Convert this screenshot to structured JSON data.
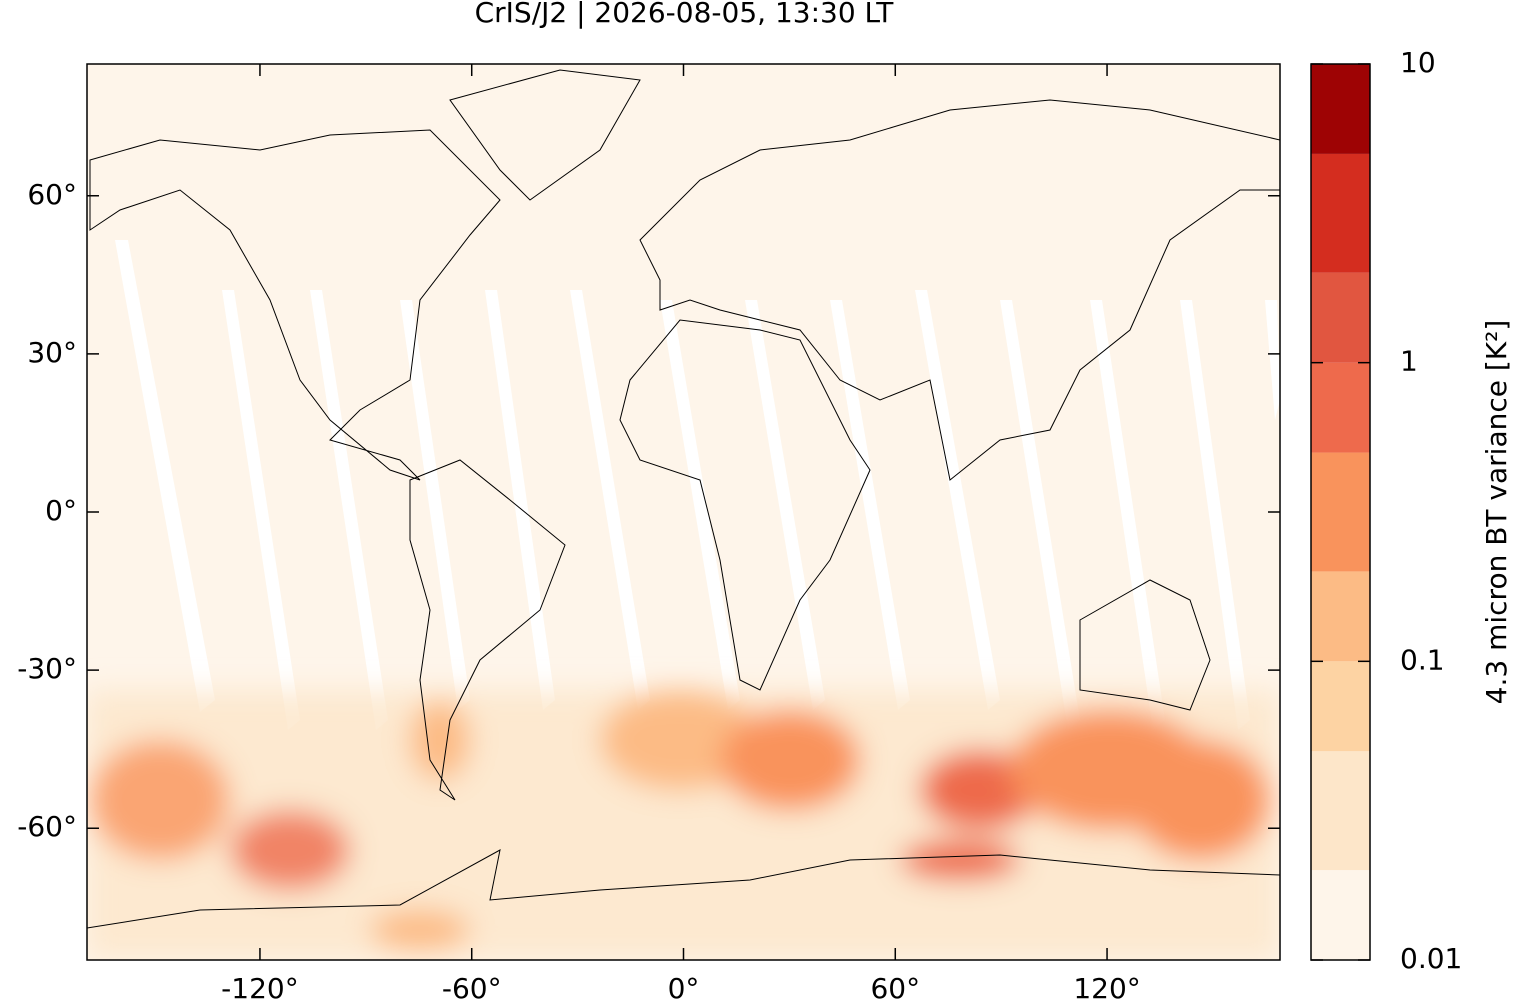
{
  "chart_data": {
    "type": "map",
    "title": "CrIS/J2 | 2026-08-05, 13:30 LT",
    "xlim": [
      -169,
      169
    ],
    "ylim": [
      -85,
      85
    ],
    "xticks": [
      {
        "value": -120,
        "label": "-120°"
      },
      {
        "value": -60,
        "label": "-60°"
      },
      {
        "value": 0,
        "label": "0°"
      },
      {
        "value": 60,
        "label": "60°"
      },
      {
        "value": 120,
        "label": "120°"
      }
    ],
    "yticks": [
      {
        "value": -60,
        "label": "-60°"
      },
      {
        "value": -30,
        "label": "-30°"
      },
      {
        "value": 0,
        "label": "0°"
      },
      {
        "value": 30,
        "label": "30°"
      },
      {
        "value": 60,
        "label": "60°"
      }
    ],
    "colorbar": {
      "label": "4.3 micron BT variance [K²]",
      "scale": "log",
      "lim": [
        0.01,
        10
      ],
      "ticks": [
        0.01,
        0.1,
        1,
        10
      ],
      "levels": [
        0.01,
        0.02,
        0.05,
        0.1,
        0.2,
        0.5,
        1,
        2,
        5,
        10
      ],
      "colors": [
        "#fef5ea",
        "#fde6c9",
        "#fdd3a3",
        "#fcbb85",
        "#f9935c",
        "#ee6a4c",
        "#e15640",
        "#d42d1f",
        "#9e0304"
      ]
    }
  }
}
